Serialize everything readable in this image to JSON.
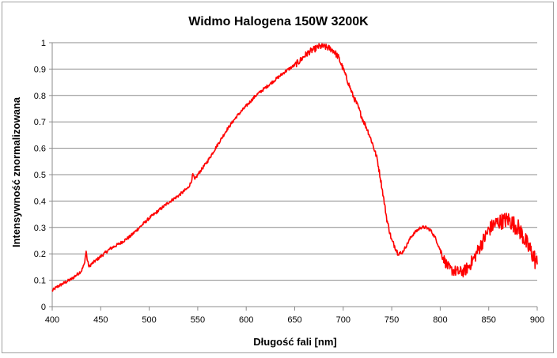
{
  "chart_data": {
    "type": "line",
    "title": "Widmo Halogena 150W 3200K",
    "xlabel": "Długość fali [nm]",
    "ylabel": "Intensywność znormalizowana",
    "xlim": [
      400,
      900
    ],
    "ylim": [
      0,
      1
    ],
    "x_ticks": [
      400,
      450,
      500,
      550,
      600,
      650,
      700,
      750,
      800,
      850,
      900
    ],
    "y_ticks": [
      0,
      0.1,
      0.2,
      0.3,
      0.4,
      0.5,
      0.6,
      0.7,
      0.8,
      0.9,
      1
    ],
    "grid": "horizontal",
    "legend": "none",
    "series_color": "#ff0000",
    "series": [
      {
        "x": [
          400,
          405,
          410,
          415,
          420,
          425,
          430,
          433,
          435,
          436,
          438,
          440,
          445,
          450,
          455,
          460,
          470,
          480,
          490,
          500,
          510,
          520,
          530,
          540,
          543,
          545,
          547,
          550,
          560,
          570,
          580,
          590,
          600,
          610,
          620,
          630,
          640,
          650,
          655,
          660,
          665,
          670,
          675,
          680,
          685,
          690,
          695,
          700,
          705,
          710,
          715,
          720,
          725,
          730,
          735,
          740,
          745,
          750,
          753,
          756,
          760,
          765,
          770,
          775,
          780,
          785,
          790,
          795,
          800,
          805,
          810,
          815,
          820,
          825,
          830,
          835,
          840,
          845,
          850,
          855,
          860,
          865,
          870,
          875,
          880,
          885,
          890,
          895,
          900
        ],
        "y": [
          0.06,
          0.075,
          0.085,
          0.095,
          0.105,
          0.12,
          0.135,
          0.16,
          0.21,
          0.18,
          0.15,
          0.16,
          0.175,
          0.19,
          0.205,
          0.22,
          0.24,
          0.265,
          0.3,
          0.335,
          0.365,
          0.395,
          0.42,
          0.45,
          0.47,
          0.5,
          0.48,
          0.5,
          0.55,
          0.61,
          0.67,
          0.72,
          0.76,
          0.8,
          0.83,
          0.86,
          0.89,
          0.915,
          0.93,
          0.95,
          0.965,
          0.975,
          0.985,
          0.985,
          0.98,
          0.97,
          0.945,
          0.9,
          0.85,
          0.8,
          0.76,
          0.71,
          0.67,
          0.62,
          0.56,
          0.45,
          0.33,
          0.25,
          0.23,
          0.205,
          0.2,
          0.23,
          0.265,
          0.285,
          0.3,
          0.3,
          0.29,
          0.26,
          0.215,
          0.17,
          0.14,
          0.135,
          0.13,
          0.135,
          0.155,
          0.185,
          0.22,
          0.255,
          0.29,
          0.31,
          0.32,
          0.325,
          0.33,
          0.315,
          0.3,
          0.27,
          0.23,
          0.2,
          0.16
        ]
      }
    ]
  }
}
